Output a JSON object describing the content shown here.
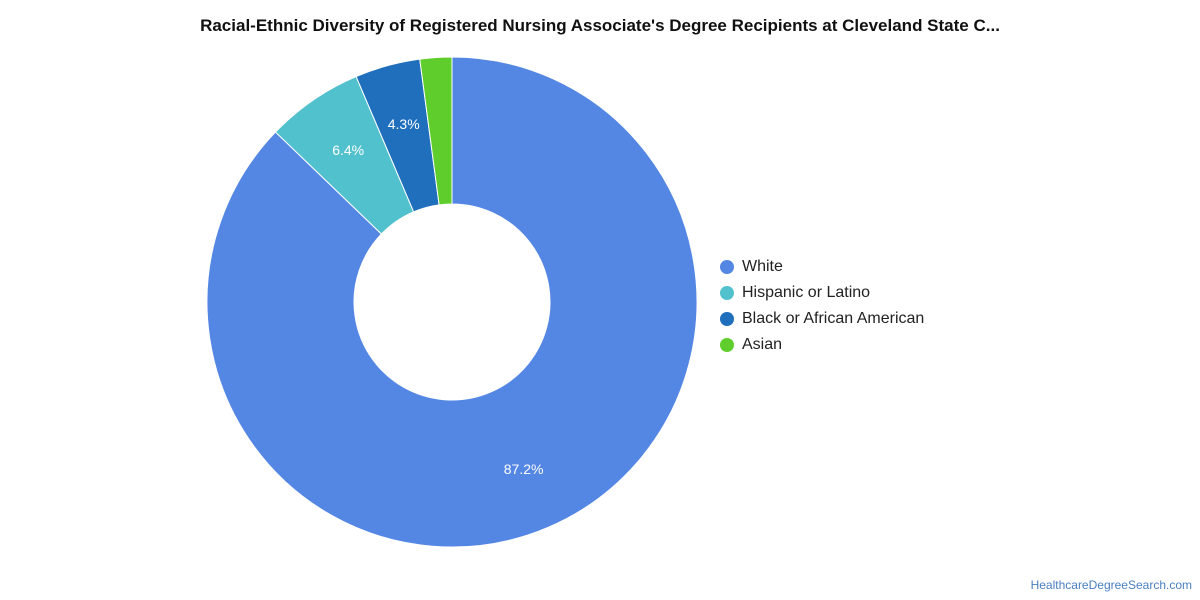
{
  "title": "Racial-Ethnic Diversity of Registered Nursing Associate's Degree Recipients at Cleveland State C...",
  "source_credit": "HealthcareDegreeSearch.com",
  "chart_data": {
    "type": "pie",
    "donut": true,
    "title": "Racial-Ethnic Diversity of Registered Nursing Associate's Degree Recipients at Cleveland State C...",
    "legend_position": "right",
    "categories": [
      "White",
      "Hispanic or Latino",
      "Black or African American",
      "Asian"
    ],
    "values": [
      87.2,
      6.4,
      4.3,
      2.1
    ],
    "data_labels": [
      "87.2%",
      "6.4%",
      "4.3%",
      ""
    ],
    "colors": [
      "#5486e3",
      "#52c1ce",
      "#1f6fbd",
      "#5fce2c"
    ]
  }
}
